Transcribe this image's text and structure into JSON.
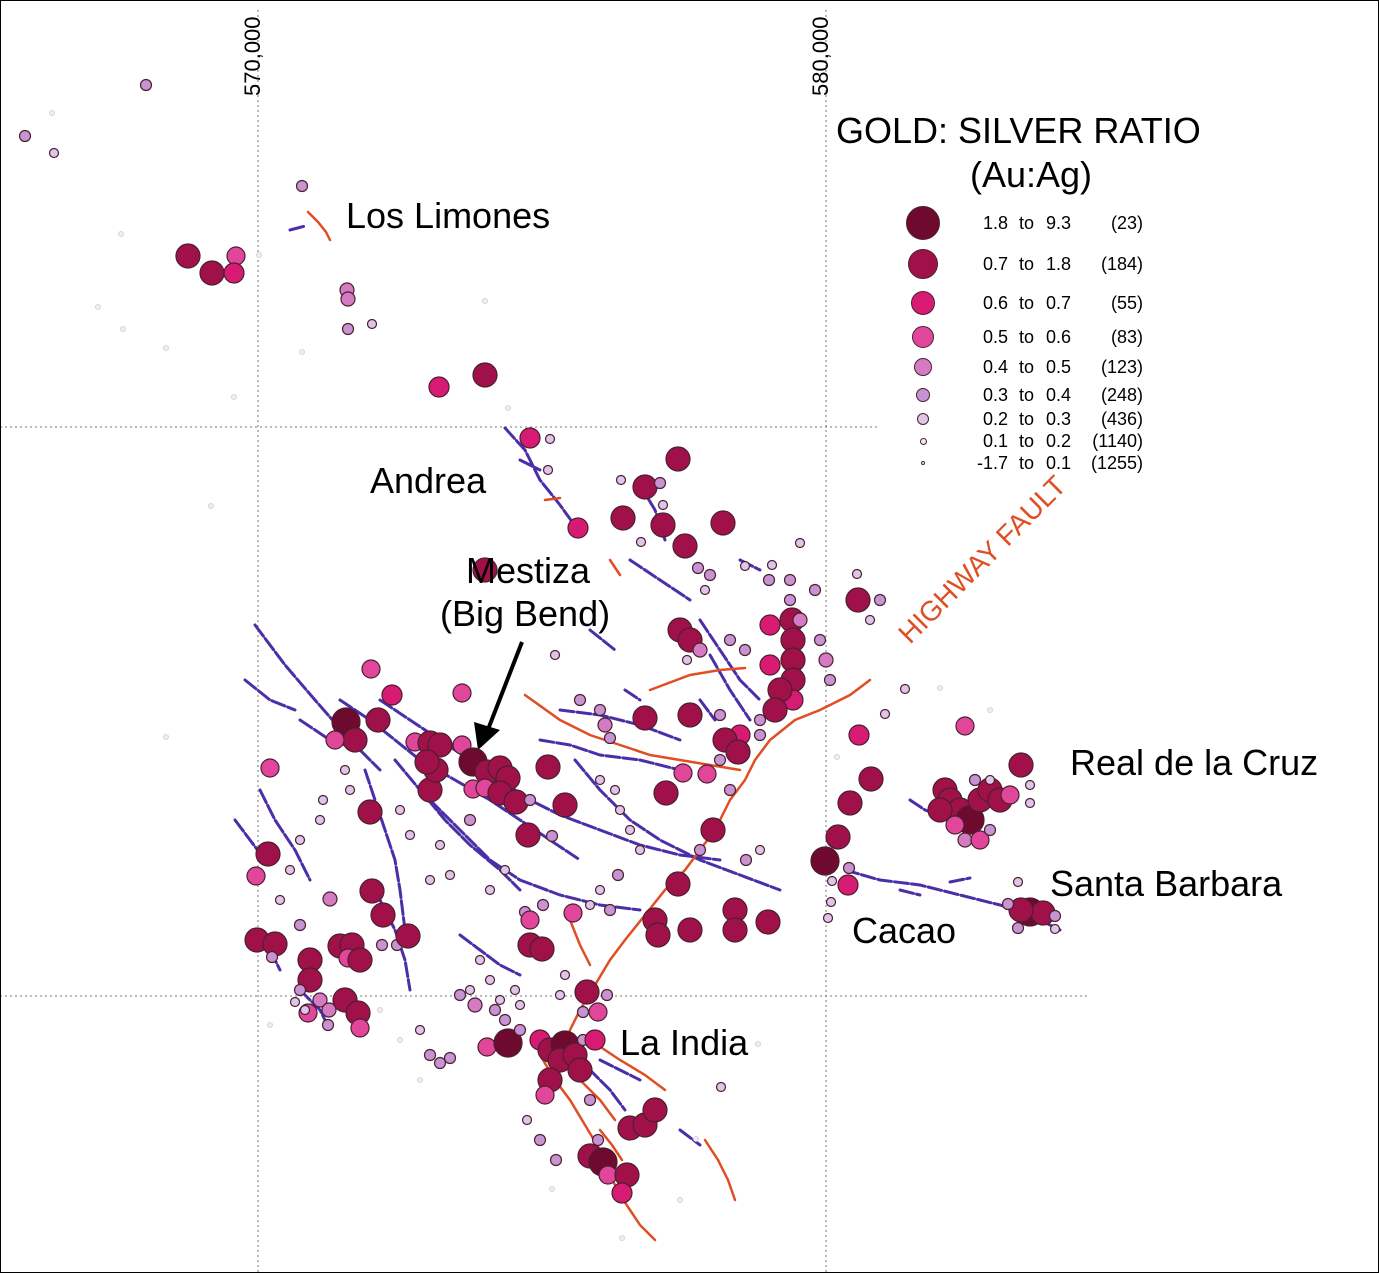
{
  "map": {
    "grid_labels": [
      "570,000",
      "580,000"
    ],
    "localities": [
      "Los Limones",
      "Andrea",
      "Mestiza",
      "(Big Bend)",
      "Real de la Cruz",
      "Santa Barbara",
      "Cacao",
      "La India"
    ],
    "fault_label": "HIGHWAY FAULT"
  },
  "legend": {
    "title_line1": "GOLD: SILVER  RATIO",
    "title_line2": "(Au:Ag)",
    "rows": [
      {
        "from": "1.8",
        "to": "9.3",
        "count": "(23)",
        "color": "#6e0a2e"
      },
      {
        "from": "0.7",
        "to": "1.8",
        "count": "(184)",
        "color": "#a0114a"
      },
      {
        "from": "0.6",
        "to": "0.7",
        "count": "(55)",
        "color": "#d81b72"
      },
      {
        "from": "0.5",
        "to": "0.6",
        "count": "(83)",
        "color": "#e0469a"
      },
      {
        "from": "0.4",
        "to": "0.5",
        "count": "(123)",
        "color": "#d57bc3"
      },
      {
        "from": "0.3",
        "to": "0.4",
        "count": "(248)",
        "color": "#c893d2"
      },
      {
        "from": "0.2",
        "to": "0.3",
        "count": "(436)",
        "color": "#ddc6e8"
      },
      {
        "from": "0.1",
        "to": "0.2",
        "count": "(1140)",
        "color": "#f0ecf5"
      },
      {
        "from": "-1.7",
        "to": "0.1",
        "count": "(1255)",
        "color": "#ffffff"
      }
    ],
    "to_word": "to"
  },
  "colors": {
    "vein": "#4b2fa8",
    "fault": "#e04e23",
    "grid": "#777777"
  }
}
